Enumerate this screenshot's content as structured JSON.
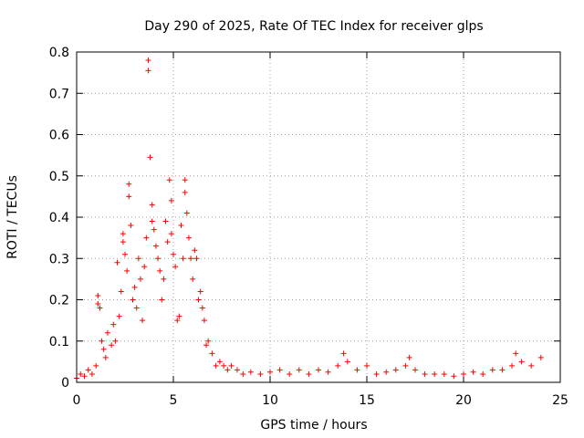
{
  "chart_data": {
    "type": "scatter",
    "title": "Day 290 of 2025, Rate Of TEC Index for receiver glps",
    "xlabel": "GPS time / hours",
    "ylabel": "ROTI / TECUs",
    "xlim": [
      0,
      25
    ],
    "ylim": [
      0,
      0.8
    ],
    "xticks": [
      0,
      5,
      10,
      15,
      20,
      25
    ],
    "xtick_labels": [
      "0",
      "5",
      "10",
      "15",
      "20",
      "25"
    ],
    "yticks": [
      0,
      0.1,
      0.2,
      0.3,
      0.4,
      0.5,
      0.6,
      0.7,
      0.8
    ],
    "ytick_labels": [
      "0",
      "0.1",
      "0.2",
      "0.3",
      "0.4",
      "0.5",
      "0.6",
      "0.7",
      "0.8"
    ],
    "grid": true,
    "marker": "+",
    "color": "#ff0000",
    "series": [
      {
        "name": "ROTI",
        "points": [
          [
            0.0,
            0.01
          ],
          [
            0.2,
            0.02
          ],
          [
            0.4,
            0.015
          ],
          [
            0.6,
            0.03
          ],
          [
            0.8,
            0.02
          ],
          [
            1.0,
            0.04
          ],
          [
            1.1,
            0.19
          ],
          [
            1.1,
            0.21
          ],
          [
            1.2,
            0.18
          ],
          [
            1.3,
            0.1
          ],
          [
            1.4,
            0.08
          ],
          [
            1.5,
            0.06
          ],
          [
            1.6,
            0.12
          ],
          [
            1.8,
            0.09
          ],
          [
            1.9,
            0.14
          ],
          [
            2.0,
            0.1
          ],
          [
            2.1,
            0.29
          ],
          [
            2.2,
            0.16
          ],
          [
            2.3,
            0.22
          ],
          [
            2.4,
            0.34
          ],
          [
            2.4,
            0.36
          ],
          [
            2.5,
            0.31
          ],
          [
            2.6,
            0.27
          ],
          [
            2.7,
            0.45
          ],
          [
            2.7,
            0.48
          ],
          [
            2.8,
            0.38
          ],
          [
            2.9,
            0.2
          ],
          [
            3.0,
            0.23
          ],
          [
            3.1,
            0.18
          ],
          [
            3.2,
            0.3
          ],
          [
            3.3,
            0.25
          ],
          [
            3.4,
            0.15
          ],
          [
            3.5,
            0.28
          ],
          [
            3.6,
            0.35
          ],
          [
            3.7,
            0.78
          ],
          [
            3.7,
            0.755
          ],
          [
            3.8,
            0.545
          ],
          [
            3.9,
            0.43
          ],
          [
            3.9,
            0.39
          ],
          [
            4.0,
            0.37
          ],
          [
            4.1,
            0.33
          ],
          [
            4.2,
            0.3
          ],
          [
            4.3,
            0.27
          ],
          [
            4.4,
            0.2
          ],
          [
            4.5,
            0.25
          ],
          [
            4.6,
            0.39
          ],
          [
            4.7,
            0.34
          ],
          [
            4.8,
            0.49
          ],
          [
            4.9,
            0.44
          ],
          [
            4.9,
            0.36
          ],
          [
            5.0,
            0.31
          ],
          [
            5.1,
            0.28
          ],
          [
            5.2,
            0.15
          ],
          [
            5.3,
            0.16
          ],
          [
            5.4,
            0.38
          ],
          [
            5.5,
            0.3
          ],
          [
            5.6,
            0.49
          ],
          [
            5.6,
            0.46
          ],
          [
            5.7,
            0.41
          ],
          [
            5.8,
            0.35
          ],
          [
            5.9,
            0.3
          ],
          [
            6.0,
            0.25
          ],
          [
            6.1,
            0.32
          ],
          [
            6.2,
            0.3
          ],
          [
            6.3,
            0.2
          ],
          [
            6.4,
            0.22
          ],
          [
            6.5,
            0.18
          ],
          [
            6.6,
            0.15
          ],
          [
            6.7,
            0.09
          ],
          [
            6.8,
            0.1
          ],
          [
            7.0,
            0.07
          ],
          [
            7.2,
            0.04
          ],
          [
            7.4,
            0.05
          ],
          [
            7.6,
            0.04
          ],
          [
            7.8,
            0.03
          ],
          [
            8.0,
            0.04
          ],
          [
            8.3,
            0.03
          ],
          [
            8.6,
            0.02
          ],
          [
            9.0,
            0.025
          ],
          [
            9.5,
            0.02
          ],
          [
            10.0,
            0.025
          ],
          [
            10.5,
            0.03
          ],
          [
            11.0,
            0.02
          ],
          [
            11.5,
            0.03
          ],
          [
            12.0,
            0.02
          ],
          [
            12.5,
            0.03
          ],
          [
            13.0,
            0.025
          ],
          [
            13.5,
            0.04
          ],
          [
            13.8,
            0.07
          ],
          [
            14.0,
            0.05
          ],
          [
            14.5,
            0.03
          ],
          [
            15.0,
            0.04
          ],
          [
            15.5,
            0.02
          ],
          [
            16.0,
            0.025
          ],
          [
            16.5,
            0.03
          ],
          [
            17.0,
            0.04
          ],
          [
            17.2,
            0.06
          ],
          [
            17.5,
            0.03
          ],
          [
            18.0,
            0.02
          ],
          [
            18.5,
            0.02
          ],
          [
            19.0,
            0.02
          ],
          [
            19.5,
            0.015
          ],
          [
            20.0,
            0.02
          ],
          [
            20.5,
            0.025
          ],
          [
            21.0,
            0.02
          ],
          [
            21.5,
            0.03
          ],
          [
            22.0,
            0.03
          ],
          [
            22.5,
            0.04
          ],
          [
            22.7,
            0.07
          ],
          [
            23.0,
            0.05
          ],
          [
            23.5,
            0.04
          ],
          [
            24.0,
            0.06
          ]
        ]
      }
    ]
  }
}
